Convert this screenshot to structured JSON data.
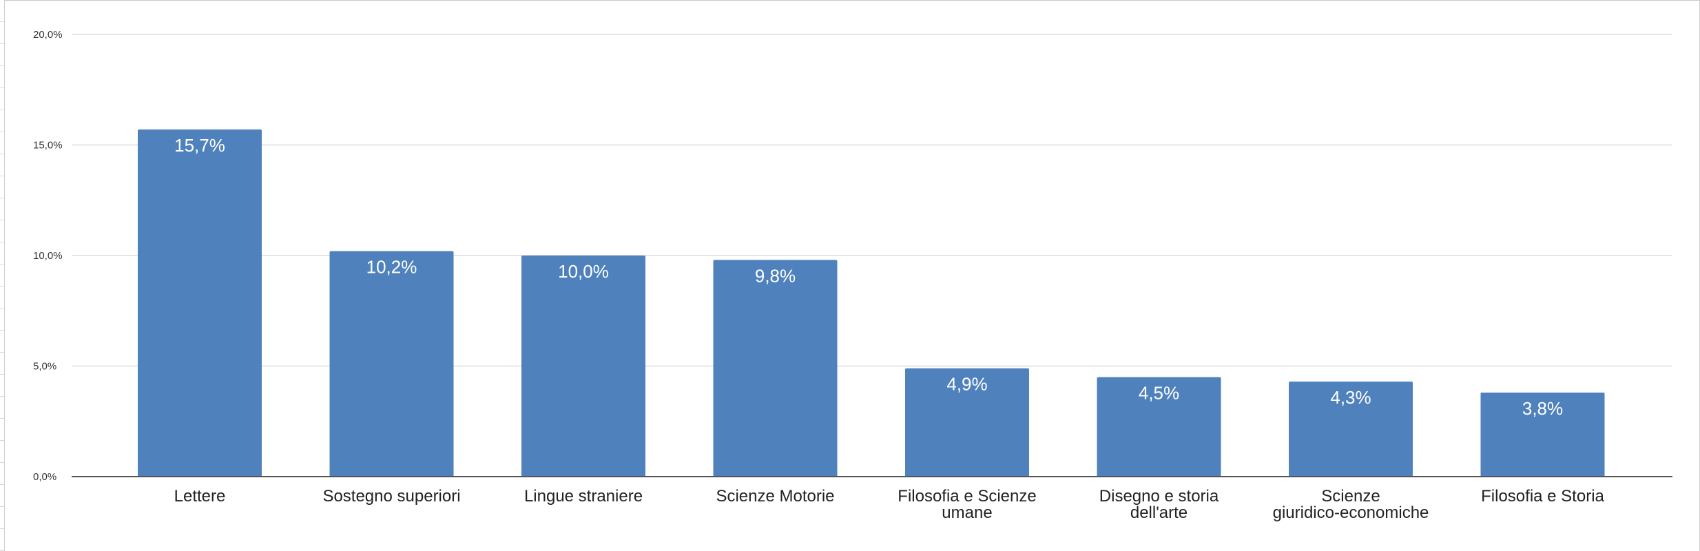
{
  "chart_data": {
    "type": "bar",
    "title": "",
    "xlabel": "",
    "ylabel": "",
    "categories": [
      [
        "Lettere"
      ],
      [
        "Sostegno superiori"
      ],
      [
        "Lingue straniere"
      ],
      [
        "Scienze Motorie"
      ],
      [
        "Filosofia e Scienze",
        "umane"
      ],
      [
        "Disegno e storia",
        "dell'arte"
      ],
      [
        "Scienze",
        "giuridico-economiche"
      ],
      [
        "Filosofia e Storia"
      ]
    ],
    "values": [
      15.7,
      10.2,
      10.0,
      9.8,
      4.9,
      4.5,
      4.3,
      3.8
    ],
    "data_labels": [
      "15,7%",
      "10,2%",
      "10,0%",
      "9,8%",
      "4,9%",
      "4,5%",
      "4,3%",
      "3,8%"
    ],
    "ylim": [
      0,
      20
    ],
    "yticks": [
      0,
      5,
      10,
      15,
      20
    ],
    "ytick_labels": [
      "0,0%",
      "5,0%",
      "10,0%",
      "15,0%",
      "20,0%"
    ],
    "grid": true,
    "legend": "none",
    "colors": {
      "bar": "#4F81BD",
      "grid": "#dcdcdc",
      "axis": "#555555",
      "data_label": "#ffffff"
    }
  }
}
